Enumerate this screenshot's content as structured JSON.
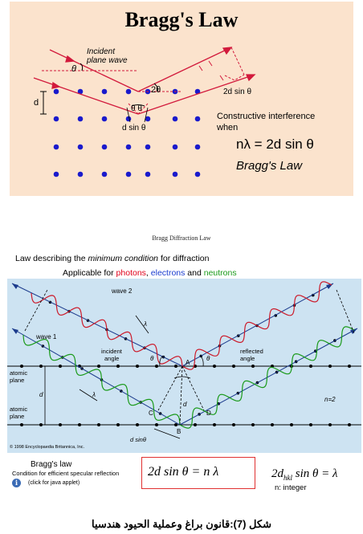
{
  "top": {
    "title": "Bragg's Law",
    "incident_label_1": "Incident",
    "incident_label_2": "plane wave",
    "theta": "θ",
    "two_theta": "2θ",
    "d": "d",
    "theta_theta": "θ θ",
    "d_sin_theta": "d sin θ",
    "right_d_sin_theta": "2d sin θ",
    "constructive_1": "Constructive interference",
    "constructive_2": "when",
    "equation": "nλ = 2d sin θ",
    "law_name": "Bragg's Law"
  },
  "bottom": {
    "header": "Bragg Diffraction Law",
    "desc_pre": "Law describing the ",
    "desc_em": "minimum condition",
    "desc_post": " for diffraction",
    "app_pre": "Applicable for ",
    "photons": "photons",
    "electrons": "electrons",
    "and": " and ",
    "neutrons": "neutrons",
    "wave2": "wave 2",
    "wave1": "wave 1",
    "lambda": "λ",
    "incident_angle_1": "incident",
    "incident_angle_2": "angle",
    "reflected_angle_1": "reflected",
    "reflected_angle_2": "angle",
    "atomic_plane_a": "atomic",
    "atomic_plane_b": "plane",
    "n2": "n=2",
    "theta": "θ",
    "d": "d",
    "A": "A",
    "B": "B",
    "C": "C",
    "D": "D",
    "d_sin_theta": "d sinθ",
    "copyright": "© 1998 Encyclopaedia Britannica, Inc."
  },
  "strip": {
    "bragg_law": "Bragg's law",
    "condition": "Condition for efficient specular reflection",
    "info": "i",
    "applet": "(click for java applet)",
    "formula": "2d sin θ = n  λ",
    "formula_hkl_pre": "2d",
    "formula_hkl_sub": "hkl",
    "formula_hkl_post": " sin θ = λ",
    "n_integer": "n: integer"
  },
  "caption": "شكل (7):قانون براغ وعملية الحيود هندسيا",
  "colors": {
    "top_bg": "#fbe3cd",
    "bottom_bg": "#cde3f2",
    "red": "#e0001a",
    "blue": "#1a3ccf",
    "green": "#1a9a1a",
    "dot": "#1a1acc"
  }
}
